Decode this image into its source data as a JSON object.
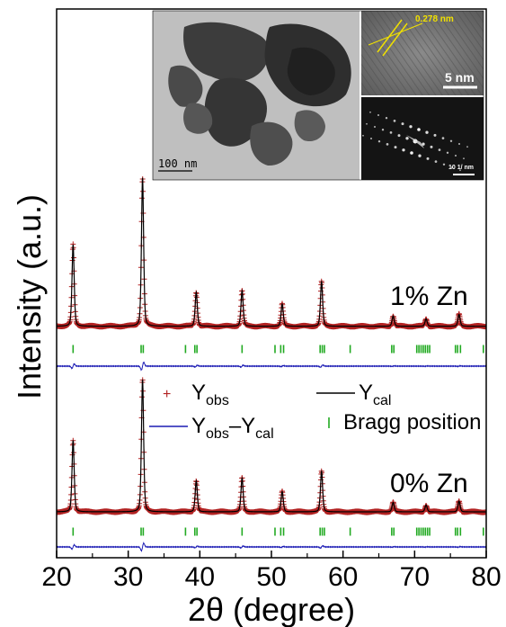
{
  "chart_data": {
    "type": "line",
    "xlabel": "2θ (degree)",
    "ylabel": "Intensity (a.u.)",
    "xlim": [
      20,
      80
    ],
    "xticks": [
      "20",
      "30",
      "40",
      "50",
      "60",
      "70",
      "80"
    ],
    "legend": {
      "placement": "center",
      "entries": [
        {
          "symbol": "+",
          "main": "Y",
          "sub": "obs",
          "color": "#b22222"
        },
        {
          "symbol": "line",
          "main": "Y",
          "sub": "cal",
          "color": "#000000"
        },
        {
          "symbol": "line",
          "main": "Y",
          "sub": "obs",
          "mid": "–Y",
          "sub2": "cal",
          "color": "#1c1cb4"
        },
        {
          "symbol": "tick",
          "main": "Bragg position",
          "color": "#22aa22"
        }
      ]
    },
    "panels": [
      {
        "label": "1% Zn",
        "peaks": [
          {
            "x": 22.3,
            "height": 0.55
          },
          {
            "x": 32.0,
            "height": 1.0
          },
          {
            "x": 39.5,
            "height": 0.23
          },
          {
            "x": 45.9,
            "height": 0.24
          },
          {
            "x": 51.5,
            "height": 0.15
          },
          {
            "x": 57.0,
            "height": 0.3
          },
          {
            "x": 67.0,
            "height": 0.07
          },
          {
            "x": 71.6,
            "height": 0.05
          },
          {
            "x": 76.2,
            "height": 0.08
          }
        ],
        "bragg_positions": [
          22.3,
          31.8,
          32.1,
          38.0,
          39.3,
          39.6,
          45.9,
          50.5,
          51.3,
          51.7,
          56.8,
          57.1,
          57.4,
          61.0,
          66.8,
          67.1,
          70.3,
          70.6,
          70.9,
          71.2,
          71.5,
          71.8,
          72.1,
          75.7,
          76.0,
          76.4,
          79.6
        ]
      },
      {
        "label": "0% Zn",
        "peaks": [
          {
            "x": 22.3,
            "height": 0.53
          },
          {
            "x": 32.0,
            "height": 0.98
          },
          {
            "x": 39.5,
            "height": 0.23
          },
          {
            "x": 45.9,
            "height": 0.25
          },
          {
            "x": 51.5,
            "height": 0.15
          },
          {
            "x": 57.0,
            "height": 0.3
          },
          {
            "x": 67.0,
            "height": 0.07
          },
          {
            "x": 71.6,
            "height": 0.05
          },
          {
            "x": 76.2,
            "height": 0.08
          }
        ],
        "bragg_positions": [
          22.3,
          31.8,
          32.1,
          38.0,
          39.3,
          39.6,
          45.9,
          50.5,
          51.3,
          51.7,
          56.8,
          57.1,
          57.4,
          61.0,
          66.8,
          67.1,
          70.3,
          70.6,
          70.9,
          71.2,
          71.5,
          71.8,
          72.1,
          75.7,
          76.0,
          76.4,
          79.6
        ]
      }
    ]
  },
  "inset": {
    "tem_scale_label": "100 nm",
    "hrtem_spacing_label": "0.278 nm",
    "hrtem_scale_label": "5 nm",
    "saed_scale_label": "10 1/ nm"
  },
  "colors": {
    "obs": "#b22222",
    "cal": "#000000",
    "diff": "#1c1cb4",
    "bragg": "#22aa22",
    "annotation": "#f0e000"
  }
}
